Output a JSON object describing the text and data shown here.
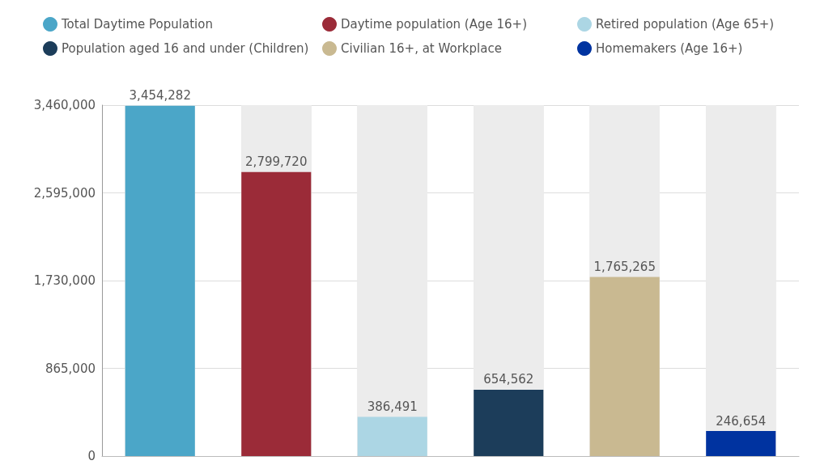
{
  "chart_data": {
    "type": "bar",
    "categories": [
      null,
      null,
      null,
      null,
      null,
      null
    ],
    "series": [
      {
        "name": "Total Daytime Population",
        "color": "#4ba6c8",
        "values": [
          3454282,
          null,
          null,
          null,
          null,
          null
        ],
        "value_labels": [
          "3,454,282",
          null,
          null,
          null,
          null,
          null
        ]
      },
      {
        "name": "Daytime population (Age 16+)",
        "color": "#9b2b38",
        "values": [
          null,
          2799720,
          null,
          null,
          null,
          null
        ],
        "value_labels": [
          null,
          "2,799,720",
          null,
          null,
          null,
          null
        ]
      },
      {
        "name": "Retired population (Age 65+)",
        "color": "#acd6e4",
        "values": [
          null,
          null,
          386491,
          null,
          null,
          null
        ],
        "value_labels": [
          null,
          null,
          "386,491",
          null,
          null,
          null
        ]
      },
      {
        "name": "Population aged 16 and under (Children)",
        "color": "#1c3d5a",
        "values": [
          null,
          null,
          null,
          654562,
          null,
          null
        ],
        "value_labels": [
          null,
          null,
          null,
          "654,562",
          null,
          null
        ]
      },
      {
        "name": "Civilian 16+, at Workplace",
        "color": "#c9b991",
        "values": [
          null,
          null,
          null,
          null,
          1765265,
          null
        ],
        "value_labels": [
          null,
          null,
          null,
          null,
          "1,765,265",
          null
        ]
      },
      {
        "name": "Homemakers (Age 16+)",
        "color": "#0033a0",
        "values": [
          null,
          null,
          null,
          null,
          null,
          246654
        ],
        "value_labels": [
          null,
          null,
          null,
          null,
          null,
          "246,654"
        ]
      }
    ],
    "ylim": [
      0,
      3460000
    ],
    "yticks": [
      0,
      {
        "value": 865000,
        "label": "865,000"
      },
      {
        "value": 1730000,
        "label": "1,730,000"
      },
      {
        "value": 2595000,
        "label": "2,595,000"
      },
      {
        "value": 3460000,
        "label": "3,460,000"
      }
    ],
    "grid": "y",
    "legend": "top"
  }
}
